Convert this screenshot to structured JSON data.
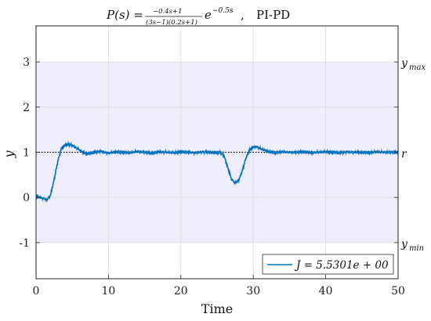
{
  "chart_data": {
    "type": "line",
    "title_plant": "P(s) = ",
    "title_numerator": "−0.4s+1",
    "title_denominator": "(3s−1)(0.2s+1)",
    "title_exponent_base": "e",
    "title_exponent": "−0.5s",
    "title_controller": "PI-PD",
    "xlabel": "Time",
    "ylabel": "y",
    "xlim": [
      0,
      50
    ],
    "ylim": [
      -1.8,
      3.8
    ],
    "xticks": [
      "0",
      "10",
      "20",
      "30",
      "40",
      "50"
    ],
    "yticks": [
      "-1",
      "0",
      "1",
      "2",
      "3"
    ],
    "grid": true,
    "right_labels": {
      "ymax": "y",
      "ymax_sub": "max",
      "r": "r",
      "ymin": "y",
      "ymin_sub": "min"
    },
    "band": {
      "ymin": -1,
      "ymax": 3,
      "color": "#eeeefb"
    },
    "reference": {
      "y": 1,
      "color": "#000000"
    },
    "legend": {
      "position": "bottom-right",
      "label": "J = 5.5301e + 00"
    },
    "series": [
      {
        "color": "#0072BD",
        "x": [
          0,
          0.5,
          1,
          1.5,
          2,
          2.5,
          3,
          3.5,
          4,
          4.5,
          5,
          5.5,
          6,
          6.5,
          7,
          7.5,
          8,
          9,
          10,
          11,
          12,
          13,
          14,
          15,
          16,
          17,
          18,
          19,
          20,
          21,
          22,
          23,
          24,
          25,
          25.5,
          26,
          26.5,
          27,
          27.5,
          28,
          28.5,
          29,
          29.5,
          30,
          30.5,
          31,
          31.5,
          32,
          33,
          34,
          35,
          36,
          37,
          38,
          39,
          40,
          41,
          42,
          43,
          44,
          45,
          46,
          47,
          48,
          49,
          50
        ],
        "y": [
          0.02,
          0.0,
          -0.02,
          -0.05,
          0.05,
          0.4,
          0.8,
          1.08,
          1.16,
          1.18,
          1.15,
          1.1,
          1.05,
          1.0,
          0.97,
          0.98,
          1.0,
          1.02,
          0.98,
          1.01,
          1.0,
          0.99,
          1.02,
          1.0,
          0.98,
          1.01,
          1.0,
          0.99,
          1.01,
          1.0,
          0.99,
          1.01,
          1.0,
          0.99,
          1.0,
          0.9,
          0.65,
          0.4,
          0.32,
          0.38,
          0.6,
          0.88,
          1.05,
          1.12,
          1.12,
          1.08,
          1.05,
          1.02,
          0.99,
          1.01,
          1.0,
          1.0,
          1.01,
          0.99,
          1.0,
          1.01,
          1.0,
          0.99,
          1.01,
          1.0,
          1.0,
          0.99,
          1.01,
          1.0,
          1.0,
          1.0
        ]
      }
    ]
  }
}
